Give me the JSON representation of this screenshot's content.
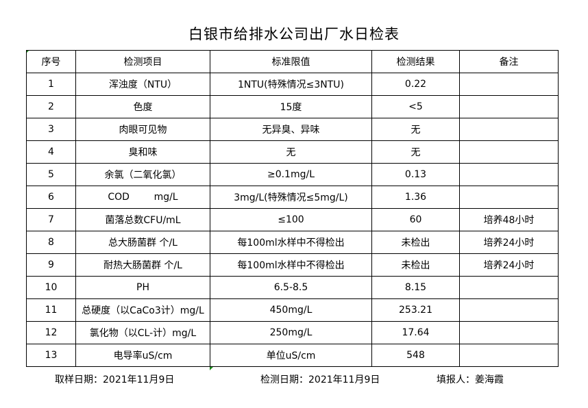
{
  "title": "白银市给排水公司出厂水日检表",
  "headers": [
    "序号",
    "检测项目",
    "标准限值",
    "检测结果",
    "备注"
  ],
  "rows": [
    [
      "1",
      "浑浊度（NTU）",
      "1NTU(特殊情况≤3NTU)",
      "0.22",
      ""
    ],
    [
      "2",
      "色度",
      "15度",
      "<5",
      ""
    ],
    [
      "3",
      "肉眼可见物",
      "无异臭、异味",
      "无",
      ""
    ],
    [
      "4",
      "臭和味",
      "无",
      "无",
      ""
    ],
    [
      "5",
      "余氯（二氧化氯）",
      "≥0.1mg/L",
      "0.13",
      ""
    ],
    [
      "6",
      "COD        mg/L",
      "3mg/L(特殊情况≤5mg/L)",
      "1.36",
      ""
    ],
    [
      "7",
      "菌落总数CFU/mL",
      "≤100",
      "60",
      "培养48小时"
    ],
    [
      "8",
      "总大肠菌群 个/L",
      "每100ml水样中不得检出",
      "未检出",
      "培养24小时"
    ],
    [
      "9",
      "耐热大肠菌群 个/L",
      "每100ml水样中不得检出",
      "未检出",
      "培养24小时"
    ],
    [
      "10",
      "PH",
      "6.5-8.5",
      "8.15",
      ""
    ],
    [
      "11",
      "总硬度（以CaCo3计）mg/L",
      "450mg/L",
      "253.21",
      ""
    ],
    [
      "12",
      "氯化物（以CL-计）mg/L",
      "250mg/L",
      "17.64",
      ""
    ],
    [
      "13",
      "电导率uS/cm",
      "单位uS/cm",
      "548",
      ""
    ]
  ],
  "footer": {
    "sample_date": "取样日期：2021年11月9日",
    "test_date": "检测日期：2021年11月9日",
    "reporter": "填报人：姜海霞"
  }
}
